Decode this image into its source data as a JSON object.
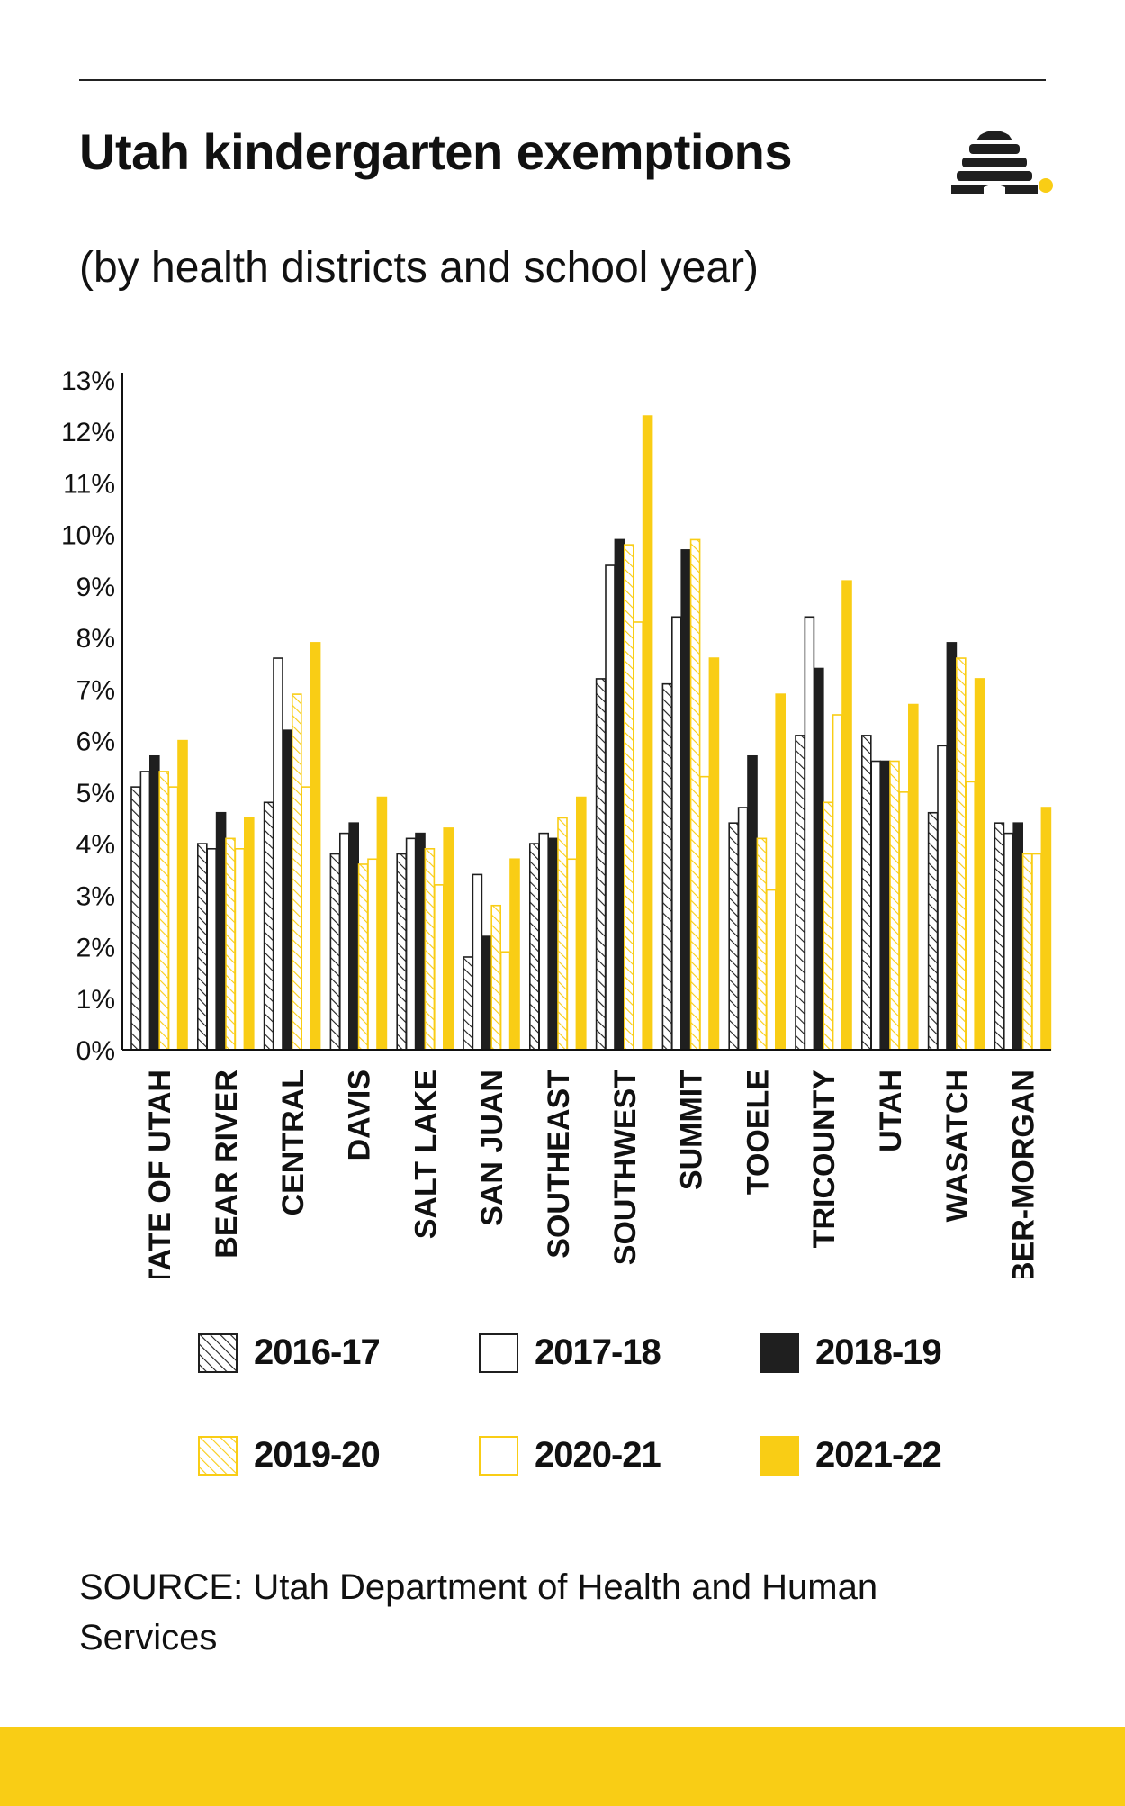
{
  "header": {
    "title": "Utah kindergarten exemptions",
    "subtitle": "(by health districts and school year)"
  },
  "legend": {
    "items": [
      {
        "label": "2016-17",
        "style": "hatch-black"
      },
      {
        "label": "2017-18",
        "style": "outline-black"
      },
      {
        "label": "2018-19",
        "style": "solid-black"
      },
      {
        "label": "2019-20",
        "style": "hatch-yellow"
      },
      {
        "label": "2020-21",
        "style": "outline-yellow"
      },
      {
        "label": "2021-22",
        "style": "solid-yellow"
      }
    ]
  },
  "source": "SOURCE: Utah Department of Health and Human Services",
  "colors": {
    "black": "#1f1f1f",
    "yellow": "#f9cd15",
    "axis": "#111111"
  },
  "chart_data": {
    "type": "bar",
    "title": "Utah kindergarten exemptions",
    "subtitle": "(by health districts and school year)",
    "xlabel": "",
    "ylabel": "",
    "ylim": [
      0,
      13
    ],
    "y_ticks": [
      "0%",
      "1%",
      "2%",
      "3%",
      "4%",
      "5%",
      "6%",
      "7%",
      "8%",
      "9%",
      "10%",
      "11%",
      "12%",
      "13%"
    ],
    "grid": false,
    "legend_position": "bottom",
    "categories": [
      "STATE OF UTAH",
      "BEAR RIVER",
      "CENTRAL",
      "DAVIS",
      "SALT LAKE",
      "SAN JUAN",
      "SOUTHEAST",
      "SOUTHWEST",
      "SUMMIT",
      "TOOELE",
      "TRICOUNTY",
      "UTAH",
      "WASATCH",
      "WEBER-MORGAN"
    ],
    "series": [
      {
        "name": "2016-17",
        "values": [
          5.1,
          4.0,
          4.8,
          3.8,
          3.8,
          1.8,
          4.0,
          7.2,
          7.1,
          4.4,
          6.1,
          6.1,
          4.6,
          4.4
        ]
      },
      {
        "name": "2017-18",
        "values": [
          5.4,
          3.9,
          7.6,
          4.2,
          4.1,
          3.4,
          4.2,
          9.4,
          8.4,
          4.7,
          8.4,
          5.6,
          5.9,
          4.2
        ]
      },
      {
        "name": "2018-19",
        "values": [
          5.7,
          4.6,
          6.2,
          4.4,
          4.2,
          2.2,
          4.1,
          9.9,
          9.7,
          5.7,
          7.4,
          5.6,
          7.9,
          4.4
        ]
      },
      {
        "name": "2019-20",
        "values": [
          5.4,
          4.1,
          6.9,
          3.6,
          3.9,
          2.8,
          4.5,
          9.8,
          9.9,
          4.1,
          4.8,
          5.6,
          7.6,
          3.8
        ]
      },
      {
        "name": "2020-21",
        "values": [
          5.1,
          3.9,
          5.1,
          3.7,
          3.2,
          1.9,
          3.7,
          8.3,
          5.3,
          3.1,
          6.5,
          5.0,
          5.2,
          3.8
        ]
      },
      {
        "name": "2021-22",
        "values": [
          6.0,
          4.5,
          7.9,
          4.9,
          4.3,
          3.7,
          4.9,
          12.3,
          7.6,
          6.9,
          9.1,
          6.7,
          7.2,
          4.7
        ]
      }
    ]
  }
}
